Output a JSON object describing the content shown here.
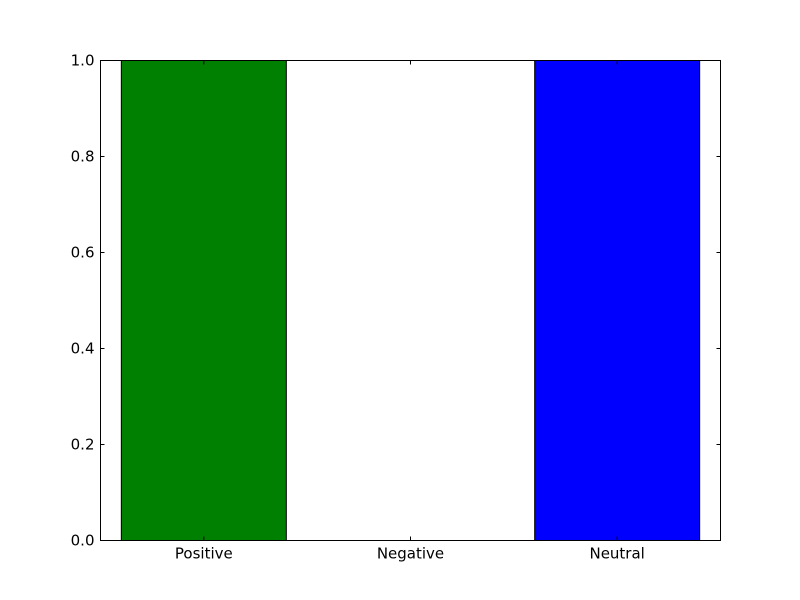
{
  "chart_data": {
    "type": "bar",
    "title": "",
    "xlabel": "",
    "ylabel": "",
    "categories": [
      "Positive",
      "Negative",
      "Neutral"
    ],
    "values": [
      1.0,
      0.0,
      1.0
    ],
    "colors": [
      "#008000",
      "#ff0000",
      "#0000ff"
    ],
    "ylim": [
      0,
      1.0
    ],
    "yticks": [
      0.0,
      0.2,
      0.4,
      0.6,
      0.8,
      1.0
    ],
    "ytick_labels": [
      "0.0",
      "0.2",
      "0.4",
      "0.6",
      "0.8",
      "1.0"
    ],
    "grid": false,
    "legend": "none"
  }
}
